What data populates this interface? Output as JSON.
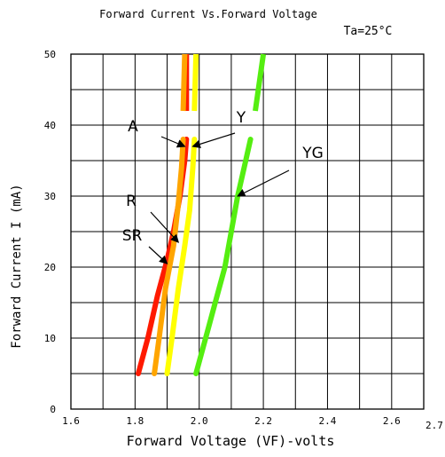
{
  "chart_data": {
    "type": "line",
    "title": "Forward Current Vs.Forward Voltage",
    "condition": "Ta=25°C",
    "xlabel": "Forward Voltage (VF)-volts",
    "ylabel": "Forward Current I (mA)",
    "xlim": [
      1.6,
      2.7
    ],
    "ylim": [
      0,
      50
    ],
    "x_ticks": [
      "1.6",
      "1.8",
      "2.0",
      "2.2",
      "2.4",
      "2.6",
      "2.7"
    ],
    "y_ticks": [
      "0",
      "10",
      "20",
      "30",
      "40",
      "50"
    ],
    "grid": true,
    "series": [
      {
        "name": "SR",
        "color": "#ff1a00",
        "points": [
          [
            1.81,
            5
          ],
          [
            1.84,
            10
          ],
          [
            1.87,
            16
          ],
          [
            1.9,
            21
          ],
          [
            1.92,
            25
          ],
          [
            1.94,
            30
          ],
          [
            1.955,
            35
          ],
          [
            1.96,
            38
          ]
        ],
        "upper": [
          [
            1.96,
            42
          ],
          [
            1.96,
            50
          ]
        ]
      },
      {
        "name": "R",
        "color": "#ffa500",
        "points": [
          [
            1.86,
            5
          ],
          [
            1.875,
            10
          ],
          [
            1.895,
            17
          ],
          [
            1.92,
            23
          ],
          [
            1.935,
            29
          ],
          [
            1.945,
            34
          ],
          [
            1.95,
            38
          ]
        ],
        "upper": [
          [
            1.95,
            42
          ],
          [
            1.955,
            50
          ]
        ]
      },
      {
        "name": "A",
        "color": "#ff1a00",
        "points": [],
        "upper": []
      },
      {
        "name": "Y",
        "color": "#ffff00",
        "points": [
          [
            1.9,
            5
          ],
          [
            1.915,
            10
          ],
          [
            1.935,
            17
          ],
          [
            1.955,
            23
          ],
          [
            1.97,
            28
          ],
          [
            1.98,
            34
          ],
          [
            1.985,
            38
          ]
        ],
        "upper": [
          [
            1.985,
            42
          ],
          [
            1.99,
            50
          ]
        ]
      },
      {
        "name": "YG",
        "color": "#55ee11",
        "points": [
          [
            1.99,
            5
          ],
          [
            2.02,
            10
          ],
          [
            2.05,
            15
          ],
          [
            2.08,
            20
          ],
          [
            2.1,
            25
          ],
          [
            2.12,
            30
          ],
          [
            2.14,
            34
          ],
          [
            2.16,
            38
          ]
        ],
        "upper": [
          [
            2.175,
            42
          ],
          [
            2.2,
            50
          ]
        ]
      }
    ],
    "annotations": [
      {
        "label": "A",
        "target": [
          1.955,
          37
        ]
      },
      {
        "label": "Y",
        "target": [
          1.98,
          37
        ]
      },
      {
        "label": "YG",
        "target": [
          2.12,
          30
        ]
      },
      {
        "label": "R",
        "target": [
          1.935,
          23.5
        ]
      },
      {
        "label": "SR",
        "target": [
          1.9,
          20.5
        ]
      }
    ]
  }
}
